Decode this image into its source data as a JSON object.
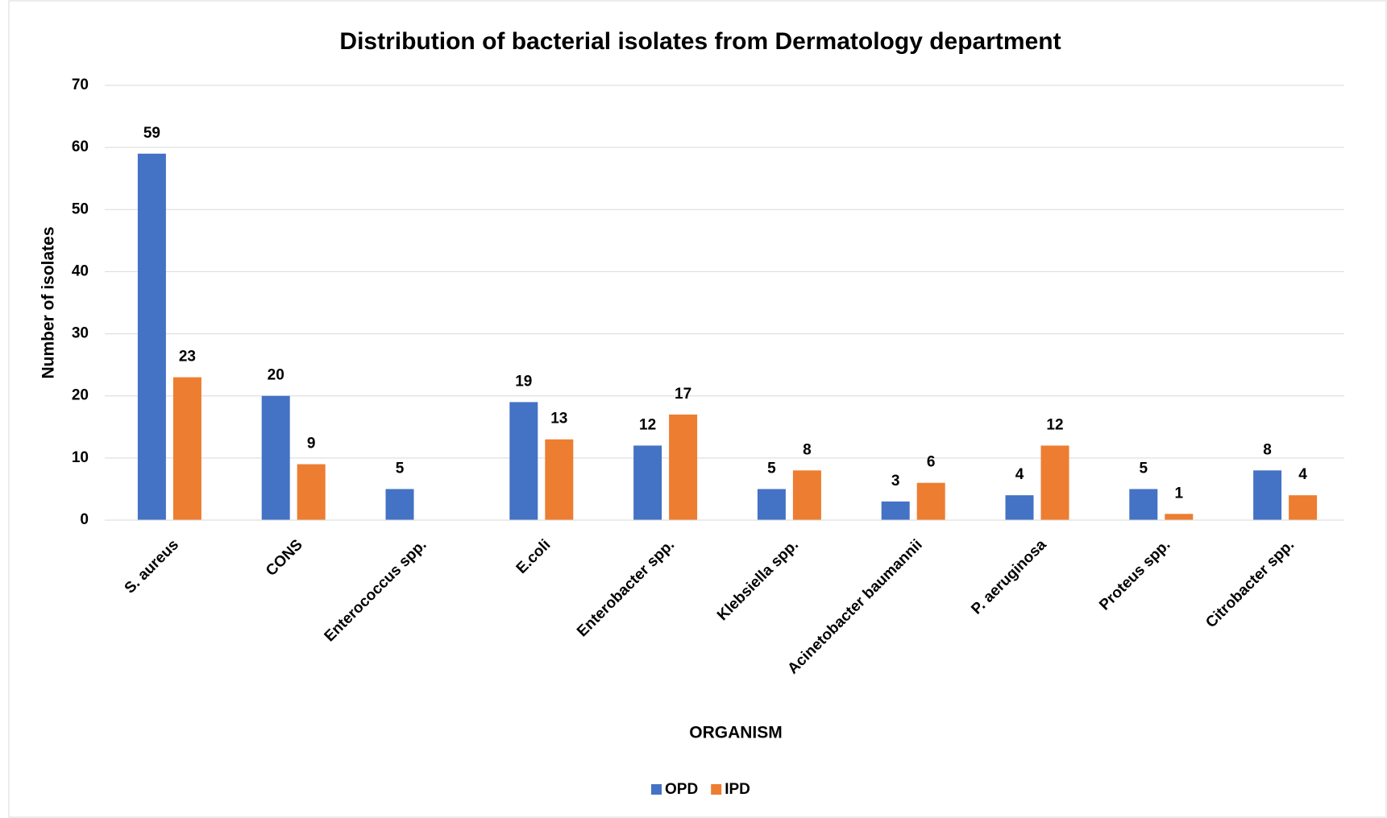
{
  "chart_data": {
    "type": "bar",
    "title": "Distribution of bacterial isolates from Dermatology department",
    "x_label": "ORGANISM",
    "y_label": "Number of isolates",
    "categories": [
      "S. aureus",
      "CONS",
      "Enterococcus spp.",
      "E.coli",
      "Enterobacter spp.",
      "Klebsiella spp.",
      "Acinetobacter baumannii",
      "P. aeruginosa",
      "Proteus spp.",
      "Citrobacter spp."
    ],
    "series": [
      {
        "name": "OPD",
        "color": "#4472c4",
        "values": [
          59,
          20,
          5,
          19,
          12,
          5,
          3,
          4,
          5,
          8
        ]
      },
      {
        "name": "IPD",
        "color": "#ed7d31",
        "values": [
          23,
          9,
          null,
          13,
          17,
          8,
          6,
          12,
          1,
          4
        ]
      }
    ],
    "ylim": [
      0,
      70
    ],
    "yticks": [
      0,
      10,
      20,
      30,
      40,
      50,
      60,
      70
    ],
    "grid": true,
    "legend": "bottom"
  }
}
